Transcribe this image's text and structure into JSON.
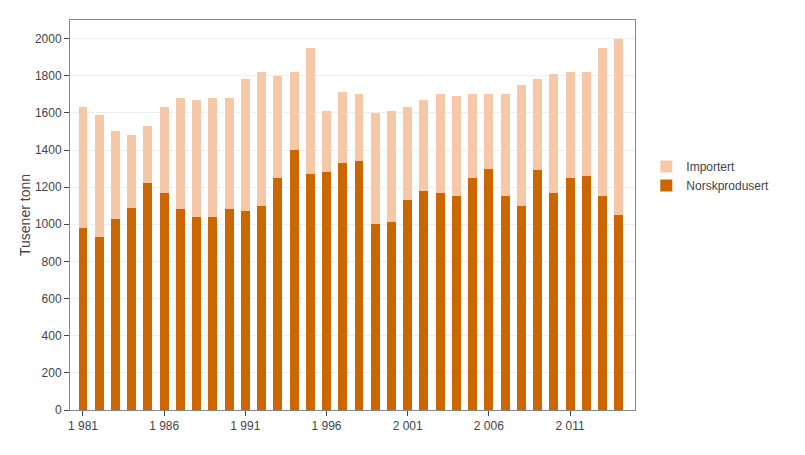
{
  "chart_data": {
    "type": "bar",
    "stacked": true,
    "x": [
      1981,
      1982,
      1983,
      1984,
      1985,
      1986,
      1987,
      1988,
      1989,
      1990,
      1991,
      1992,
      1993,
      1994,
      1995,
      1996,
      1997,
      1998,
      1999,
      2000,
      2001,
      2002,
      2003,
      2004,
      2005,
      2006,
      2007,
      2008,
      2009,
      2010,
      2011,
      2012,
      2013,
      2014
    ],
    "series": [
      {
        "name": "Norskprodusert",
        "color": "#CC6600",
        "values": [
          980,
          930,
          1030,
          1090,
          1220,
          1170,
          1080,
          1040,
          1040,
          1080,
          1070,
          1100,
          1250,
          1400,
          1270,
          1280,
          1330,
          1340,
          1000,
          1010,
          1130,
          1180,
          1170,
          1150,
          1250,
          1300,
          1150,
          1100,
          1290,
          1170,
          1250,
          1260,
          1150,
          1050
        ]
      },
      {
        "name": "Importert",
        "color": "#F5C9A8",
        "values": [
          650,
          660,
          470,
          390,
          310,
          460,
          600,
          630,
          640,
          600,
          710,
          720,
          550,
          420,
          680,
          330,
          380,
          360,
          600,
          600,
          500,
          490,
          530,
          540,
          450,
          400,
          550,
          650,
          490,
          640,
          570,
          560,
          800,
          950
        ]
      }
    ],
    "y_label": "Tusener tonn",
    "xlim": [
      1980.2,
      2015.0
    ],
    "xticks": [
      {
        "value": 1981,
        "label": "1 981"
      },
      {
        "value": 1986,
        "label": "1 986"
      },
      {
        "value": 1991,
        "label": "1 991"
      },
      {
        "value": 1996,
        "label": "1 996"
      },
      {
        "value": 2001,
        "label": "2 001"
      },
      {
        "value": 2006,
        "label": "2 006"
      },
      {
        "value": 2011,
        "label": "2 011"
      }
    ],
    "ylim": [
      0,
      2100
    ],
    "yticks": [
      0,
      200,
      400,
      600,
      800,
      1000,
      1200,
      1400,
      1600,
      1800,
      2000
    ],
    "grid": "y",
    "legend": "right"
  }
}
